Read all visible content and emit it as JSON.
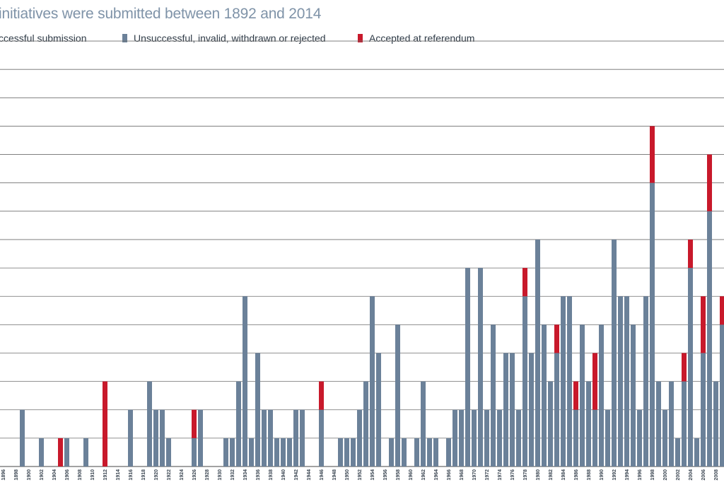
{
  "title": "initiatives were submitted between 1892 and 2014",
  "legend": [
    {
      "label": "ccessful submission",
      "color": ""
    },
    {
      "label": "Unsuccessful, invalid, withdrawn or rejected",
      "color": "#6b8199"
    },
    {
      "label": "Accepted at referendum",
      "color": "#c8192b"
    }
  ],
  "colors": {
    "unsuccessful": "#6b8199",
    "accepted": "#c8192b",
    "grid": "#6e6e6e"
  },
  "chart_data": {
    "type": "bar",
    "stacked": true,
    "x_range": [
      1896,
      2009
    ],
    "ylim": [
      0,
      15
    ],
    "grid": true,
    "tick_labels": [
      "1896",
      "1898",
      "1900",
      "1902",
      "1904",
      "1906",
      "1908",
      "1910",
      "1912",
      "1914",
      "1916",
      "1918",
      "1920",
      "1922",
      "1924",
      "1926",
      "1928",
      "1930",
      "1932",
      "1934",
      "1936",
      "1938",
      "1940",
      "1942",
      "1944",
      "1946",
      "1948",
      "1950",
      "1952",
      "1954",
      "1956",
      "1958",
      "1960",
      "1962",
      "1964",
      "1966",
      "1968",
      "1970",
      "1972",
      "1974",
      "1976",
      "1978",
      "1980",
      "1982",
      "1984",
      "1986",
      "1988",
      "1990",
      "1992",
      "1994",
      "1996",
      "1998",
      "2000",
      "2002",
      "2004",
      "2006",
      "2008"
    ],
    "series": [
      {
        "name": "Unsuccessful, invalid, withdrawn or rejected",
        "data": [
          [
            1899,
            2
          ],
          [
            1902,
            1
          ],
          [
            1905,
            0
          ],
          [
            1906,
            1
          ],
          [
            1909,
            1
          ],
          [
            1912,
            0
          ],
          [
            1916,
            2
          ],
          [
            1919,
            3
          ],
          [
            1920,
            2
          ],
          [
            1921,
            2
          ],
          [
            1922,
            1
          ],
          [
            1926,
            1
          ],
          [
            1927,
            2
          ],
          [
            1931,
            1
          ],
          [
            1932,
            1
          ],
          [
            1933,
            3
          ],
          [
            1934,
            6
          ],
          [
            1935,
            1
          ],
          [
            1936,
            4
          ],
          [
            1937,
            2
          ],
          [
            1938,
            2
          ],
          [
            1939,
            1
          ],
          [
            1940,
            1
          ],
          [
            1941,
            1
          ],
          [
            1942,
            2
          ],
          [
            1943,
            2
          ],
          [
            1946,
            2
          ],
          [
            1949,
            1
          ],
          [
            1950,
            1
          ],
          [
            1951,
            1
          ],
          [
            1952,
            2
          ],
          [
            1953,
            3
          ],
          [
            1954,
            6
          ],
          [
            1955,
            4
          ],
          [
            1957,
            1
          ],
          [
            1958,
            5
          ],
          [
            1959,
            1
          ],
          [
            1961,
            1
          ],
          [
            1962,
            3
          ],
          [
            1963,
            1
          ],
          [
            1964,
            1
          ],
          [
            1966,
            1
          ],
          [
            1967,
            2
          ],
          [
            1968,
            2
          ],
          [
            1969,
            7
          ],
          [
            1970,
            2
          ],
          [
            1971,
            7
          ],
          [
            1972,
            2
          ],
          [
            1973,
            5
          ],
          [
            1974,
            2
          ],
          [
            1975,
            4
          ],
          [
            1976,
            4
          ],
          [
            1977,
            2
          ],
          [
            1978,
            6
          ],
          [
            1979,
            4
          ],
          [
            1980,
            8
          ],
          [
            1981,
            5
          ],
          [
            1982,
            3
          ],
          [
            1983,
            4
          ],
          [
            1984,
            6
          ],
          [
            1985,
            6
          ],
          [
            1986,
            2
          ],
          [
            1987,
            5
          ],
          [
            1988,
            3
          ],
          [
            1989,
            2
          ],
          [
            1990,
            5
          ],
          [
            1991,
            2
          ],
          [
            1992,
            8
          ],
          [
            1993,
            6
          ],
          [
            1994,
            6
          ],
          [
            1995,
            5
          ],
          [
            1996,
            2
          ],
          [
            1997,
            6
          ],
          [
            1998,
            10
          ],
          [
            1999,
            3
          ],
          [
            2000,
            2
          ],
          [
            2001,
            3
          ],
          [
            2002,
            1
          ],
          [
            2003,
            3
          ],
          [
            2004,
            7
          ],
          [
            2005,
            1
          ],
          [
            2006,
            4
          ],
          [
            2007,
            9
          ],
          [
            2008,
            3
          ],
          [
            2009,
            5
          ]
        ]
      },
      {
        "name": "Accepted at referendum",
        "data": [
          [
            1905,
            1
          ],
          [
            1912,
            3
          ],
          [
            1926,
            1
          ],
          [
            1946,
            1
          ],
          [
            1978,
            1
          ],
          [
            1983,
            1
          ],
          [
            1986,
            1
          ],
          [
            1989,
            2
          ],
          [
            1998,
            2
          ],
          [
            2003,
            1
          ],
          [
            2004,
            1
          ],
          [
            2006,
            2
          ],
          [
            2007,
            2
          ],
          [
            2009,
            1
          ]
        ]
      }
    ]
  }
}
